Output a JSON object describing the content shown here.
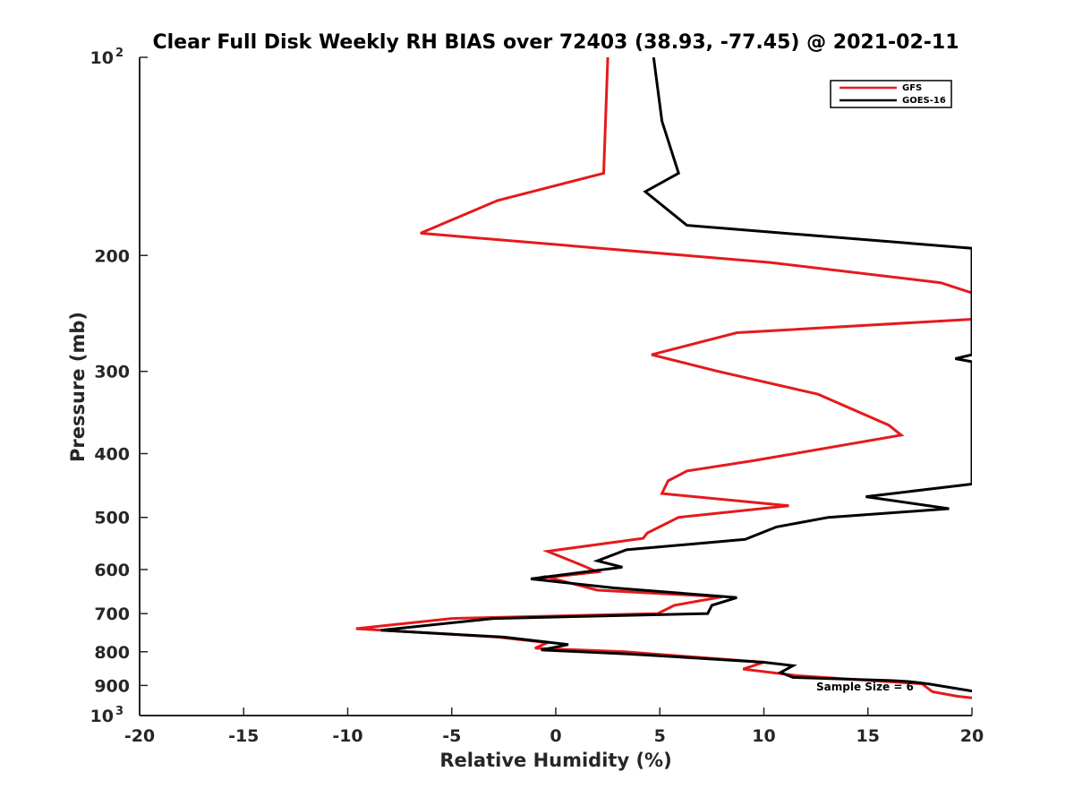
{
  "chart_data": {
    "type": "line",
    "title": "Clear Full Disk Weekly RH BIAS over 72403 (38.93, -77.45) @ 2021-02-11",
    "xlabel": "Relative Humidity (%)",
    "ylabel": "Pressure (mb)",
    "xlim": [
      -20,
      20
    ],
    "ylim": [
      100,
      1000
    ],
    "y_scale": "log",
    "y_reversed": true,
    "grid": false,
    "legend_position": "top-right",
    "xticks": [
      "-20",
      "-15",
      "-10",
      "-5",
      "0",
      "5",
      "10",
      "15",
      "20"
    ],
    "yticks": [
      {
        "value": 100,
        "label": "10",
        "sup": "2"
      },
      {
        "value": 200,
        "label": "200"
      },
      {
        "value": 300,
        "label": "300"
      },
      {
        "value": 400,
        "label": "400"
      },
      {
        "value": 500,
        "label": "500"
      },
      {
        "value": 600,
        "label": "600"
      },
      {
        "value": 700,
        "label": "700"
      },
      {
        "value": 800,
        "label": "800"
      },
      {
        "value": 900,
        "label": "900"
      },
      {
        "value": 1000,
        "label": "10",
        "sup": "3"
      }
    ],
    "series": [
      {
        "name": "GFS",
        "color": "#e41a1c",
        "points": [
          [
            2.5,
            100
          ],
          [
            2.3,
            150
          ],
          [
            -2.8,
            165
          ],
          [
            -6.5,
            185
          ],
          [
            10.3,
            205
          ],
          [
            18.5,
            220
          ],
          [
            20,
            228
          ],
          [
            20,
            250
          ],
          [
            8.7,
            262
          ],
          [
            4.6,
            283
          ],
          [
            7.8,
            300
          ],
          [
            12.6,
            325
          ],
          [
            16.0,
            362
          ],
          [
            16.6,
            375
          ],
          [
            9.5,
            410
          ],
          [
            6.3,
            425
          ],
          [
            5.4,
            440
          ],
          [
            5.1,
            460
          ],
          [
            11.2,
            480
          ],
          [
            5.9,
            500
          ],
          [
            4.4,
            528
          ],
          [
            4.2,
            538
          ],
          [
            -0.4,
            563
          ],
          [
            1.2,
            590
          ],
          [
            2.0,
            605
          ],
          [
            -1.0,
            620
          ],
          [
            -0.5,
            615
          ],
          [
            2.0,
            645
          ],
          [
            8.0,
            660
          ],
          [
            5.7,
            680
          ],
          [
            4.9,
            700
          ],
          [
            -5.0,
            712
          ],
          [
            -9.6,
            738
          ],
          [
            -2.8,
            760
          ],
          [
            -0.4,
            775
          ],
          [
            -1.0,
            790
          ],
          [
            3.3,
            800
          ],
          [
            10.0,
            830
          ],
          [
            9.0,
            850
          ],
          [
            11.6,
            870
          ],
          [
            17.6,
            895
          ],
          [
            18.1,
            920
          ],
          [
            19.3,
            935
          ],
          [
            20,
            940
          ]
        ]
      },
      {
        "name": "GOES-16",
        "color": "#000000",
        "points": [
          [
            4.7,
            100
          ],
          [
            5.1,
            125
          ],
          [
            5.9,
            150
          ],
          [
            4.3,
            160
          ],
          [
            6.3,
            180
          ],
          [
            20,
            195
          ],
          [
            20,
            283
          ],
          [
            19.2,
            287
          ],
          [
            20,
            290
          ],
          [
            20,
            445
          ],
          [
            14.9,
            465
          ],
          [
            18.9,
            485
          ],
          [
            13.1,
            500
          ],
          [
            10.6,
            517
          ],
          [
            9.1,
            540
          ],
          [
            3.4,
            560
          ],
          [
            2.0,
            582
          ],
          [
            3.2,
            595
          ],
          [
            -1.2,
            620
          ],
          [
            2.8,
            640
          ],
          [
            8.7,
            662
          ],
          [
            7.5,
            680
          ],
          [
            7.3,
            700
          ],
          [
            -3.0,
            712
          ],
          [
            -8.4,
            742
          ],
          [
            -2.5,
            760
          ],
          [
            0.6,
            780
          ],
          [
            -0.7,
            795
          ],
          [
            3.5,
            806
          ],
          [
            10.0,
            830
          ],
          [
            11.4,
            840
          ],
          [
            10.8,
            860
          ],
          [
            11.4,
            875
          ],
          [
            16.2,
            885
          ],
          [
            17.0,
            888
          ],
          [
            17.9,
            895
          ],
          [
            20,
            918
          ]
        ]
      }
    ],
    "annotation": "Sample Size = 6"
  }
}
